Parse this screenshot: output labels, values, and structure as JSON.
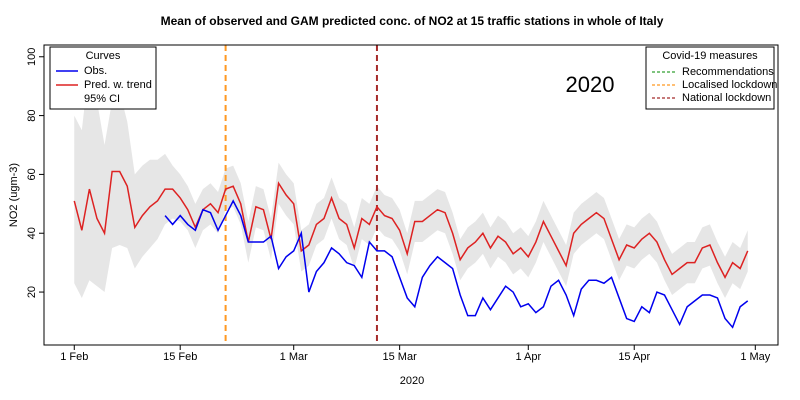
{
  "chart_data": {
    "type": "line",
    "title": "Mean of observed and GAM predicted conc. of NO2 at 15 traffic stations in whole of Italy",
    "x_label": "2020",
    "y_label": "NO2 (ugm-3)",
    "annotation": "2020",
    "legend_title": "Curves",
    "x": [
      "2020-02-01",
      "2020-02-02",
      "2020-02-03",
      "2020-02-04",
      "2020-02-05",
      "2020-02-06",
      "2020-02-07",
      "2020-02-08",
      "2020-02-09",
      "2020-02-10",
      "2020-02-11",
      "2020-02-12",
      "2020-02-13",
      "2020-02-14",
      "2020-02-15",
      "2020-02-16",
      "2020-02-17",
      "2020-02-18",
      "2020-02-19",
      "2020-02-20",
      "2020-02-21",
      "2020-02-22",
      "2020-02-23",
      "2020-02-24",
      "2020-02-25",
      "2020-02-26",
      "2020-02-27",
      "2020-02-28",
      "2020-02-29",
      "2020-03-01",
      "2020-03-02",
      "2020-03-03",
      "2020-03-04",
      "2020-03-05",
      "2020-03-06",
      "2020-03-07",
      "2020-03-08",
      "2020-03-09",
      "2020-03-10",
      "2020-03-11",
      "2020-03-12",
      "2020-03-13",
      "2020-03-14",
      "2020-03-15",
      "2020-03-16",
      "2020-03-17",
      "2020-03-18",
      "2020-03-19",
      "2020-03-20",
      "2020-03-21",
      "2020-03-22",
      "2020-03-23",
      "2020-03-24",
      "2020-03-25",
      "2020-03-26",
      "2020-03-27",
      "2020-03-28",
      "2020-03-29",
      "2020-03-30",
      "2020-03-31",
      "2020-04-01",
      "2020-04-02",
      "2020-04-03",
      "2020-04-04",
      "2020-04-05",
      "2020-04-06",
      "2020-04-07",
      "2020-04-08",
      "2020-04-09",
      "2020-04-10",
      "2020-04-11",
      "2020-04-12",
      "2020-04-13",
      "2020-04-14",
      "2020-04-15",
      "2020-04-16",
      "2020-04-17",
      "2020-04-18",
      "2020-04-19",
      "2020-04-20",
      "2020-04-21",
      "2020-04-22",
      "2020-04-23",
      "2020-04-24",
      "2020-04-25",
      "2020-04-26",
      "2020-04-27",
      "2020-04-28",
      "2020-04-29",
      "2020-04-30"
    ],
    "series": [
      {
        "name": "Obs.",
        "color": "#0000ee",
        "values": [
          null,
          null,
          null,
          null,
          null,
          null,
          null,
          null,
          null,
          null,
          null,
          null,
          46,
          43,
          46,
          43,
          41,
          48,
          47,
          41,
          46,
          51,
          46,
          37,
          37,
          37,
          39,
          28,
          32,
          34,
          40,
          20,
          27,
          30,
          35,
          33,
          30,
          29,
          25,
          37,
          34,
          34,
          32,
          25,
          18,
          15,
          25,
          29,
          32,
          30,
          28,
          19,
          12,
          12,
          18,
          14,
          18,
          22,
          20,
          15,
          16,
          13,
          15,
          22,
          24,
          19,
          12,
          21,
          24,
          24,
          23,
          25,
          18,
          11,
          10,
          15,
          13,
          20,
          19,
          14,
          9,
          15,
          17,
          19,
          19,
          18,
          11,
          8,
          15,
          17
        ]
      },
      {
        "name": "Pred. w. trend",
        "color": "#dd2222",
        "values": [
          51,
          41,
          55,
          45,
          40,
          61,
          61,
          56,
          42,
          46,
          49,
          51,
          55,
          55,
          52,
          48,
          42,
          48,
          50,
          47,
          55,
          56,
          50,
          37,
          49,
          48,
          38,
          57,
          53,
          50,
          34,
          36,
          43,
          45,
          52,
          45,
          43,
          35,
          45,
          43,
          49,
          46,
          45,
          41,
          33,
          44,
          44,
          46,
          48,
          47,
          40,
          31,
          35,
          37,
          40,
          35,
          39,
          37,
          33,
          35,
          32,
          37,
          44,
          39,
          34,
          29,
          40,
          43,
          45,
          47,
          45,
          38,
          31,
          36,
          35,
          38,
          40,
          37,
          31,
          26,
          28,
          30,
          30,
          35,
          36,
          30,
          25,
          30,
          28,
          34
        ]
      }
    ],
    "band": {
      "name": "95% CI",
      "color": "#e6e6e6",
      "upper": [
        80,
        75,
        98,
        85,
        70,
        85,
        88,
        78,
        60,
        63,
        65,
        65,
        67,
        63,
        60,
        56,
        50,
        55,
        57,
        54,
        62,
        63,
        57,
        44,
        56,
        55,
        45,
        64,
        60,
        57,
        41,
        43,
        50,
        52,
        59,
        52,
        50,
        42,
        52,
        50,
        56,
        53,
        52,
        48,
        40,
        51,
        51,
        53,
        55,
        54,
        47,
        38,
        42,
        44,
        47,
        42,
        46,
        44,
        40,
        42,
        39,
        44,
        51,
        46,
        41,
        36,
        47,
        50,
        52,
        54,
        52,
        45,
        38,
        43,
        42,
        45,
        47,
        44,
        38,
        33,
        35,
        37,
        37,
        42,
        43,
        37,
        32,
        37,
        35,
        41
      ],
      "lower": [
        23,
        18,
        24,
        22,
        20,
        35,
        36,
        35,
        28,
        32,
        35,
        38,
        43,
        45,
        44,
        41,
        35,
        41,
        43,
        40,
        48,
        49,
        43,
        30,
        42,
        41,
        31,
        50,
        46,
        43,
        27,
        29,
        36,
        38,
        45,
        38,
        36,
        28,
        38,
        36,
        42,
        39,
        38,
        34,
        26,
        37,
        37,
        39,
        41,
        40,
        33,
        24,
        28,
        30,
        33,
        28,
        32,
        30,
        26,
        28,
        25,
        30,
        37,
        32,
        27,
        22,
        33,
        36,
        38,
        40,
        38,
        31,
        24,
        29,
        28,
        31,
        33,
        30,
        24,
        19,
        21,
        23,
        23,
        28,
        29,
        23,
        18,
        23,
        21,
        27
      ]
    },
    "measures": {
      "title": "Covid-19 measures",
      "items": [
        {
          "name": "Recommendations",
          "color": "#33a033",
          "date": null
        },
        {
          "name": "Localised lockdown",
          "color": "#ff9922",
          "date": "2020-02-21"
        },
        {
          "name": "National lockdown",
          "color": "#a52a2a",
          "date": "2020-03-12"
        }
      ]
    },
    "xlim": [
      "2020-01-28",
      "2020-05-04"
    ],
    "xticks": [
      {
        "value": "2020-02-01",
        "label": "1 Feb"
      },
      {
        "value": "2020-02-15",
        "label": "15 Feb"
      },
      {
        "value": "2020-03-01",
        "label": "1 Mar"
      },
      {
        "value": "2020-03-15",
        "label": "15 Mar"
      },
      {
        "value": "2020-04-01",
        "label": "1 Apr"
      },
      {
        "value": "2020-04-15",
        "label": "15 Apr"
      },
      {
        "value": "2020-05-01",
        "label": "1 May"
      }
    ],
    "ylim": [
      2,
      104
    ],
    "yticks": [
      20,
      40,
      60,
      80,
      100
    ]
  }
}
